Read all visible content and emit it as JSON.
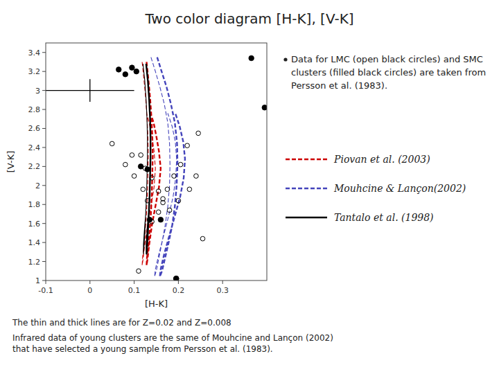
{
  "chart_data": {
    "type": "scatter",
    "title": "Two color diagram [H-K], [V-K]",
    "x_label": "[H-K]",
    "y_label": "[V-K]",
    "xlim": [
      -0.1,
      0.4
    ],
    "ylim": [
      1.0,
      3.5
    ],
    "xticks": [
      -0.1,
      0,
      0.1,
      0.2,
      0.3
    ],
    "yticks": [
      1.0,
      1.2,
      1.4,
      1.6,
      1.8,
      2.0,
      2.2,
      2.4,
      2.6,
      2.8,
      3.0,
      3.2,
      3.4
    ],
    "grid": false,
    "legend": "right",
    "annotations": [
      "Data for LMC (open black circles) and SMC clusters (filled black circles) are taken from Persson et al. (1983).",
      "The thin and thick lines are for Z=0.02 and Z=0.008",
      "Infrared data of young clusters are the same of Mouhcine and Lançon (2002)\nthat have selected a young sample from Persson et al. (1983)."
    ],
    "error_cross": {
      "x": 0.0,
      "y": 3.0,
      "x_error": 0.1,
      "y_error": 0.12
    },
    "series": [
      {
        "name": "Piovan et al. (2003)",
        "type": "line",
        "color": "#cc0000",
        "line_style": "dashed",
        "x": [
          0.118,
          0.122,
          0.126,
          0.129,
          0.131,
          0.132,
          0.131,
          0.13,
          0.128,
          0.125,
          0.122,
          0.119,
          0.118,
          0.12,
          0.124,
          0.13,
          0.138,
          0.145,
          0.148,
          0.145,
          0.14,
          0.134,
          0.128
        ],
        "values": [
          3.3,
          3.12,
          2.92,
          2.72,
          2.52,
          2.32,
          2.12,
          1.92,
          1.72,
          1.52,
          1.36,
          1.24,
          1.16,
          1.22,
          1.38,
          1.58,
          1.78,
          1.98,
          2.18,
          2.36,
          2.52,
          2.66,
          2.76
        ]
      },
      {
        "name": "Piovan et al. (2003)",
        "type": "line",
        "color": "#cc0000",
        "line_style": "dashed",
        "x": [
          0.128,
          0.132,
          0.136,
          0.139,
          0.141,
          0.142,
          0.141,
          0.14,
          0.138,
          0.135,
          0.132,
          0.129,
          0.128,
          0.13,
          0.134,
          0.14,
          0.148,
          0.156,
          0.16,
          0.156,
          0.15,
          0.144,
          0.137
        ],
        "values": [
          3.3,
          3.12,
          2.92,
          2.72,
          2.52,
          2.32,
          2.12,
          1.92,
          1.72,
          1.52,
          1.36,
          1.24,
          1.16,
          1.22,
          1.38,
          1.58,
          1.78,
          1.98,
          2.18,
          2.36,
          2.52,
          2.66,
          2.76
        ]
      },
      {
        "name": "Mouhcine & Lançon(2002)",
        "type": "line",
        "color": "#4444bb",
        "line_style": "dashed",
        "x": [
          0.138,
          0.148,
          0.158,
          0.168,
          0.176,
          0.18,
          0.181,
          0.18,
          0.176,
          0.17,
          0.163,
          0.156,
          0.15,
          0.146,
          0.148,
          0.156,
          0.167,
          0.178,
          0.188,
          0.194,
          0.196,
          0.193,
          0.186,
          0.176
        ],
        "values": [
          3.35,
          3.2,
          3.04,
          2.86,
          2.66,
          2.44,
          2.22,
          2.0,
          1.78,
          1.58,
          1.4,
          1.24,
          1.1,
          1.04,
          1.12,
          1.28,
          1.48,
          1.68,
          1.88,
          2.08,
          2.28,
          2.46,
          2.62,
          2.76
        ]
      },
      {
        "name": "Mouhcine & Lançon(2002)",
        "type": "line",
        "color": "#4444bb",
        "line_style": "dashed",
        "x": [
          0.152,
          0.162,
          0.173,
          0.183,
          0.192,
          0.197,
          0.198,
          0.196,
          0.192,
          0.186,
          0.178,
          0.17,
          0.163,
          0.158,
          0.16,
          0.168,
          0.18,
          0.192,
          0.204,
          0.212,
          0.215,
          0.211,
          0.203,
          0.193
        ],
        "values": [
          3.35,
          3.2,
          3.04,
          2.86,
          2.66,
          2.44,
          2.22,
          2.0,
          1.78,
          1.58,
          1.4,
          1.24,
          1.1,
          1.04,
          1.12,
          1.28,
          1.48,
          1.68,
          1.88,
          2.08,
          2.28,
          2.46,
          2.62,
          2.76
        ]
      },
      {
        "name": "Tantalo et al. (1998)",
        "type": "line",
        "color": "#000000",
        "line_style": "solid",
        "x": [
          0.12,
          0.124,
          0.127,
          0.129,
          0.13,
          0.13,
          0.129,
          0.128,
          0.126,
          0.124,
          0.122,
          0.121,
          0.121,
          0.123,
          0.126
        ],
        "values": [
          3.28,
          3.1,
          2.9,
          2.7,
          2.5,
          2.3,
          2.1,
          1.9,
          1.7,
          1.5,
          1.35,
          1.28,
          1.38,
          1.52,
          1.7
        ]
      },
      {
        "name": "Tantalo et al. (1998)",
        "type": "line",
        "color": "#000000",
        "line_style": "solid",
        "x": [
          0.127,
          0.131,
          0.134,
          0.136,
          0.137,
          0.137,
          0.136,
          0.135,
          0.133,
          0.131,
          0.129,
          0.128,
          0.128,
          0.13,
          0.133
        ],
        "values": [
          3.28,
          3.1,
          2.9,
          2.7,
          2.5,
          2.3,
          2.1,
          1.9,
          1.7,
          1.5,
          1.35,
          1.28,
          1.38,
          1.52,
          1.7
        ]
      },
      {
        "type": "scatter",
        "color": "#000000",
        "marker": "open-circle",
        "x": [
          0.05,
          0.08,
          0.1,
          0.115,
          0.12,
          0.13,
          0.14,
          0.155,
          0.165,
          0.175,
          0.19,
          0.205,
          0.22,
          0.245,
          0.255,
          0.125,
          0.14,
          0.155,
          0.165,
          0.18,
          0.2,
          0.225,
          0.24,
          0.095,
          0.11
        ],
        "values": [
          2.44,
          2.22,
          2.1,
          2.32,
          1.96,
          1.84,
          1.62,
          1.72,
          1.86,
          1.96,
          2.1,
          2.22,
          2.42,
          2.55,
          1.44,
          2.18,
          2.08,
          1.94,
          1.82,
          1.74,
          1.84,
          1.96,
          2.1,
          2.32,
          1.1
        ]
      },
      {
        "type": "scatter",
        "color": "#000000",
        "marker": "circle",
        "x": [
          0.065,
          0.08,
          0.095,
          0.105,
          0.115,
          0.13,
          0.135,
          0.16,
          0.195
        ],
        "values": [
          3.22,
          3.17,
          3.24,
          3.2,
          2.2,
          2.17,
          1.64,
          1.64,
          1.02
        ]
      },
      {
        "type": "scatter",
        "color": "#000000",
        "marker": "circle",
        "x": [
          0.365,
          0.395
        ],
        "values": [
          3.34,
          2.82
        ]
      },
      {
        "type": "scatter",
        "color": "#000000",
        "marker": "circle",
        "x": [
          0.195
        ],
        "values": [
          1.02
        ]
      }
    ]
  }
}
